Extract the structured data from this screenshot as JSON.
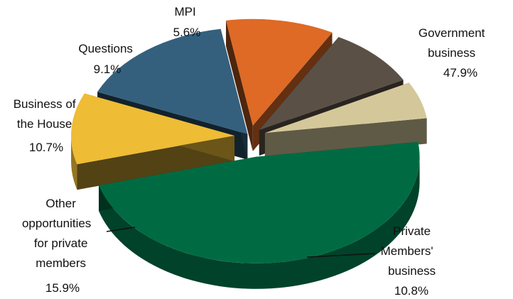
{
  "chart_data": {
    "type": "pie",
    "title": "",
    "slices": [
      {
        "label_lines": [
          "Government",
          "business"
        ],
        "pct_text": "47.9%",
        "value": 47.9,
        "color": "#006b43"
      },
      {
        "label_lines": [
          "Private",
          "Members'",
          "business"
        ],
        "pct_text": "10.8%",
        "value": 10.8,
        "color": "#eebc35"
      },
      {
        "label_lines": [
          "Other",
          "opportunities",
          "for private",
          "members"
        ],
        "pct_text": "15.9%",
        "value": 15.9,
        "color": "#34607e"
      },
      {
        "label_lines": [
          "Business of",
          "the House"
        ],
        "pct_text": "10.7%",
        "value": 10.7,
        "color": "#de6a26"
      },
      {
        "label_lines": [
          "Questions"
        ],
        "pct_text": "9.1%",
        "value": 9.1,
        "color": "#5a5046"
      },
      {
        "label_lines": [
          "MPI"
        ],
        "pct_text": "5.6%",
        "value": 5.6,
        "color": "#d4c89a"
      }
    ]
  }
}
